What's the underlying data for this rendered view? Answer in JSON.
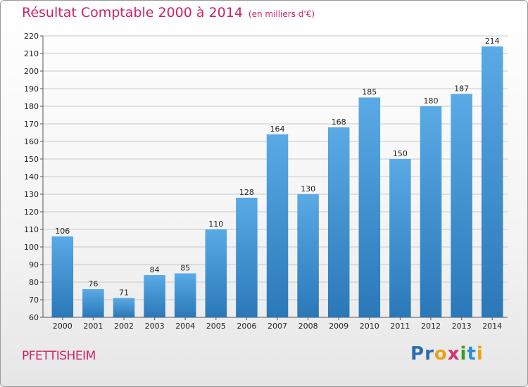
{
  "header": {
    "title": "Résultat Comptable 2000 à 2014",
    "subtitle": "(en milliers d'€)"
  },
  "footer": {
    "commune": "PFETTISHEIM",
    "logo_letters": [
      {
        "char": "P",
        "color": "#2b6cb0"
      },
      {
        "char": "r",
        "color": "#2b6cb0"
      },
      {
        "char": "o",
        "color": "#e8a317"
      },
      {
        "char": "x",
        "color": "#d6336c"
      },
      {
        "char": "i",
        "color": "#3a9d23"
      },
      {
        "char": "t",
        "color": "#2b8fd6"
      },
      {
        "char": "i",
        "color": "#e8a317"
      }
    ]
  },
  "colors": {
    "bar_light": "#5aaae6",
    "bar_dark": "#2a78b8",
    "grid": "#c8c8c8",
    "accent": "#cc2266"
  },
  "chart_data": {
    "type": "bar",
    "categories": [
      "2000",
      "2001",
      "2002",
      "2003",
      "2004",
      "2005",
      "2006",
      "2007",
      "2008",
      "2009",
      "2010",
      "2011",
      "2012",
      "2013",
      "2014"
    ],
    "values": [
      106,
      76,
      71,
      84,
      85,
      110,
      128,
      164,
      130,
      168,
      185,
      150,
      180,
      187,
      214
    ],
    "title": "Résultat Comptable 2000 à 2014",
    "subtitle": "(en milliers d'€)",
    "ylim": [
      60,
      220
    ],
    "yticks": [
      60,
      70,
      80,
      90,
      100,
      110,
      120,
      130,
      140,
      150,
      160,
      170,
      180,
      190,
      200,
      210,
      220
    ],
    "grid": true,
    "data_labels": true
  }
}
